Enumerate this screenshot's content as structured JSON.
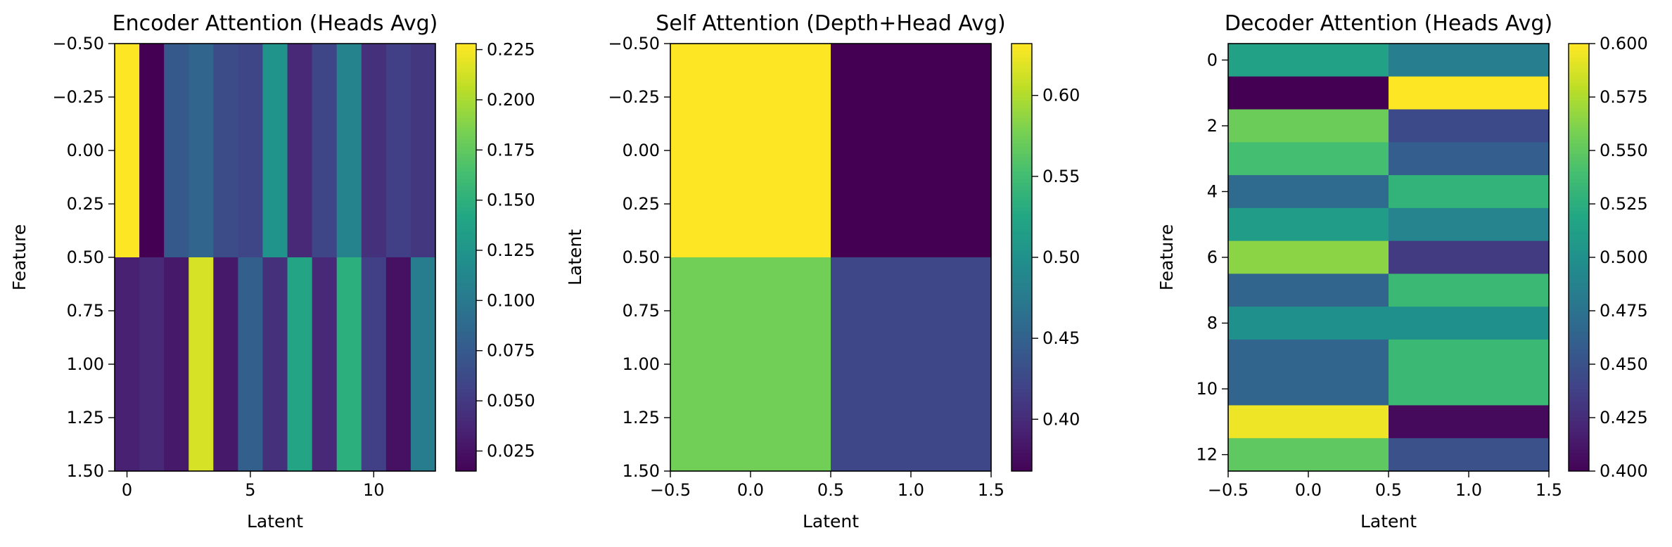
{
  "chart_data": [
    {
      "type": "heatmap",
      "title": "Encoder Attention (Heads Avg)",
      "xlabel": "Latent",
      "ylabel": "Feature",
      "x_extent": [
        -0.5,
        12.5
      ],
      "y_extent": [
        -0.5,
        1.5
      ],
      "y_inverted": true,
      "xticks": [
        0,
        5,
        10
      ],
      "xtick_labels": [
        "0",
        "5",
        "10"
      ],
      "yticks": [
        -0.5,
        -0.25,
        0.0,
        0.25,
        0.5,
        0.75,
        1.0,
        1.25,
        1.5
      ],
      "ytick_labels": [
        "−0.50",
        "−0.25",
        "0.00",
        "0.25",
        "0.50",
        "0.75",
        "1.00",
        "1.25",
        "1.50"
      ],
      "values": [
        [
          0.228,
          0.015,
          0.075,
          0.085,
          0.065,
          0.06,
          0.125,
          0.04,
          0.06,
          0.11,
          0.045,
          0.055,
          0.05
        ],
        [
          0.035,
          0.04,
          0.03,
          0.215,
          0.03,
          0.08,
          0.045,
          0.14,
          0.04,
          0.15,
          0.055,
          0.025,
          0.105
        ]
      ],
      "vmin": 0.015,
      "vmax": 0.228,
      "colormap": "viridis",
      "colorbar_ticks": [
        0.025,
        0.05,
        0.075,
        0.1,
        0.125,
        0.15,
        0.175,
        0.2,
        0.225
      ],
      "colorbar_tick_labels": [
        "0.025",
        "0.050",
        "0.075",
        "0.100",
        "0.125",
        "0.150",
        "0.175",
        "0.200",
        "0.225"
      ]
    },
    {
      "type": "heatmap",
      "title": "Self Attention (Depth+Head Avg)",
      "xlabel": "Latent",
      "ylabel": "Latent",
      "x_extent": [
        -0.5,
        1.5
      ],
      "y_extent": [
        -0.5,
        1.5
      ],
      "y_inverted": true,
      "xticks": [
        -0.5,
        0.0,
        0.5,
        1.0,
        1.5
      ],
      "xtick_labels": [
        "−0.5",
        "0.0",
        "0.5",
        "1.0",
        "1.5"
      ],
      "yticks": [
        -0.5,
        -0.25,
        0.0,
        0.25,
        0.5,
        0.75,
        1.0,
        1.25,
        1.5
      ],
      "ytick_labels": [
        "−0.50",
        "−0.25",
        "0.00",
        "0.25",
        "0.50",
        "0.75",
        "1.00",
        "1.25",
        "1.50"
      ],
      "values": [
        [
          0.632,
          0.368
        ],
        [
          0.575,
          0.425
        ]
      ],
      "vmin": 0.368,
      "vmax": 0.632,
      "colormap": "viridis",
      "colorbar_ticks": [
        0.4,
        0.45,
        0.5,
        0.55,
        0.6
      ],
      "colorbar_tick_labels": [
        "0.40",
        "0.45",
        "0.50",
        "0.55",
        "0.60"
      ]
    },
    {
      "type": "heatmap",
      "title": "Decoder Attention (Heads Avg)",
      "xlabel": "Latent",
      "ylabel": "Feature",
      "x_extent": [
        -0.5,
        1.5
      ],
      "y_extent": [
        -0.5,
        12.5
      ],
      "y_inverted": true,
      "xticks": [
        -0.5,
        0.0,
        0.5,
        1.0,
        1.5
      ],
      "xtick_labels": [
        "−0.5",
        "0.0",
        "0.5",
        "1.0",
        "1.5"
      ],
      "yticks": [
        0,
        2,
        4,
        6,
        8,
        10,
        12
      ],
      "ytick_labels": [
        "0",
        "2",
        "4",
        "6",
        "8",
        "10",
        "12"
      ],
      "values": [
        [
          0.515,
          0.485
        ],
        [
          0.4,
          0.6
        ],
        [
          0.555,
          0.445
        ],
        [
          0.54,
          0.46
        ],
        [
          0.47,
          0.53
        ],
        [
          0.51,
          0.49
        ],
        [
          0.565,
          0.435
        ],
        [
          0.465,
          0.535
        ],
        [
          0.5,
          0.5
        ],
        [
          0.465,
          0.535
        ],
        [
          0.465,
          0.535
        ],
        [
          0.595,
          0.405
        ],
        [
          0.55,
          0.45
        ]
      ],
      "vmin": 0.4,
      "vmax": 0.6,
      "colormap": "viridis",
      "colorbar_ticks": [
        0.4,
        0.425,
        0.45,
        0.475,
        0.5,
        0.525,
        0.55,
        0.575,
        0.6
      ],
      "colorbar_tick_labels": [
        "0.400",
        "0.425",
        "0.450",
        "0.475",
        "0.500",
        "0.525",
        "0.550",
        "0.575",
        "0.600"
      ]
    }
  ]
}
